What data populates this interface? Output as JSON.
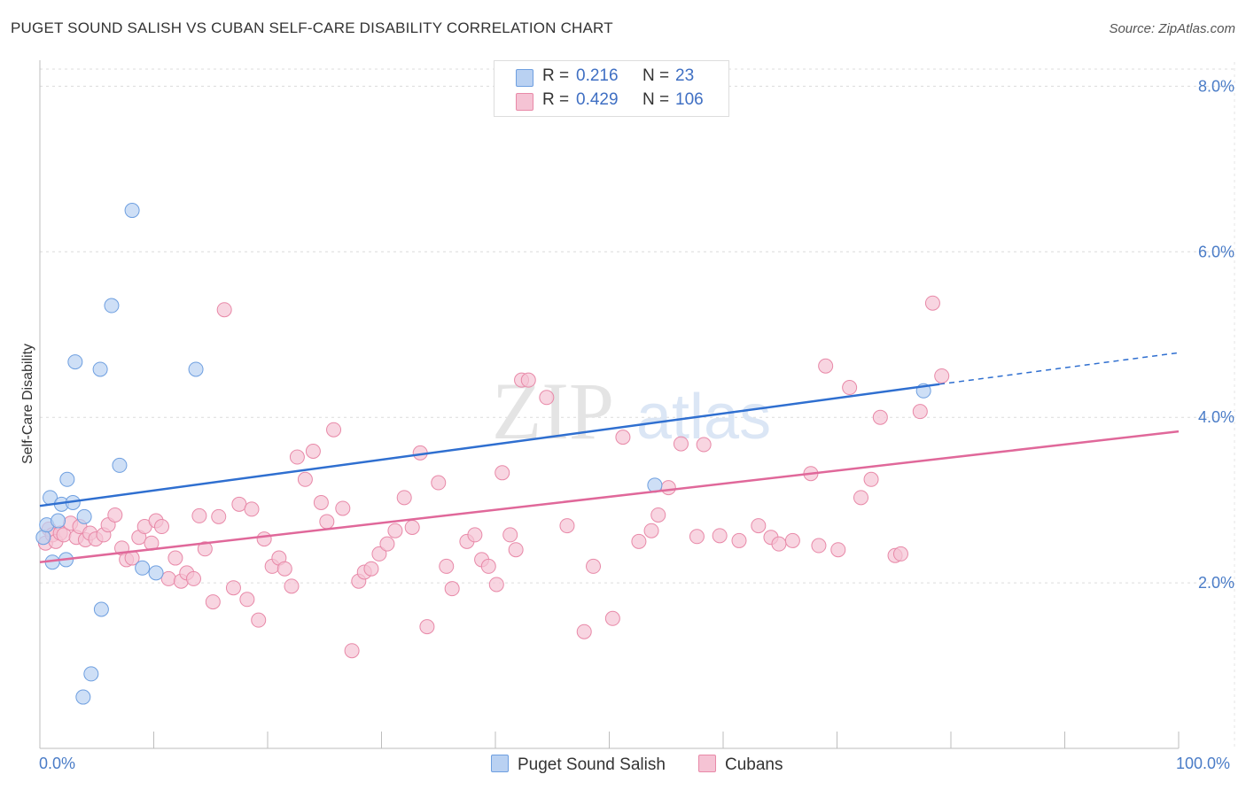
{
  "title": "PUGET SOUND SALISH VS CUBAN SELF-CARE DISABILITY CORRELATION CHART",
  "source": "Source: ZipAtlas.com",
  "watermark": "ZIPatlas",
  "legend": {
    "rows": [
      {
        "r_label": "R =",
        "r_value": "0.216",
        "n_label": "N =",
        "n_value": "23"
      },
      {
        "r_label": "R =",
        "r_value": "0.429",
        "n_label": "N =",
        "n_value": "106"
      }
    ]
  },
  "bottom_legend": [
    "Puget Sound Salish",
    "Cubans"
  ],
  "chart_data": {
    "type": "scatter",
    "title": "PUGET SOUND SALISH VS CUBAN SELF-CARE DISABILITY CORRELATION CHART",
    "xlabel": "",
    "ylabel": "Self-Care Disability",
    "xlim": [
      0,
      100
    ],
    "ylim": [
      0,
      8.4
    ],
    "x_tick_labels": [
      "0.0%",
      "100.0%"
    ],
    "y_ticks": [
      2.0,
      4.0,
      6.0,
      8.0
    ],
    "y_tick_labels": [
      "2.0%",
      "4.0%",
      "6.0%",
      "8.0%"
    ],
    "grid": true,
    "series": [
      {
        "name": "Puget Sound Salish",
        "color": "#6e9fe0",
        "fill": "#b9d1f2",
        "line_color": "#2f6fd0",
        "trend": {
          "x_start": 0,
          "y_start": 2.93,
          "x_solid_end": 79,
          "y_solid_end": 4.4,
          "x_dash_end": 100,
          "y_dash_end": 4.78
        },
        "points": [
          [
            0.3,
            2.55
          ],
          [
            0.6,
            2.7
          ],
          [
            0.9,
            3.03
          ],
          [
            1.1,
            2.25
          ],
          [
            1.6,
            2.75
          ],
          [
            1.9,
            2.95
          ],
          [
            2.3,
            2.28
          ],
          [
            2.4,
            3.25
          ],
          [
            2.9,
            2.97
          ],
          [
            3.1,
            4.67
          ],
          [
            3.9,
            2.8
          ],
          [
            5.3,
            4.58
          ],
          [
            5.4,
            1.68
          ],
          [
            6.3,
            5.35
          ],
          [
            7.0,
            3.42
          ],
          [
            8.1,
            6.5
          ],
          [
            9.0,
            2.18
          ],
          [
            10.2,
            2.12
          ],
          [
            13.7,
            4.58
          ],
          [
            3.8,
            0.62
          ],
          [
            4.5,
            0.9
          ],
          [
            54.0,
            3.18
          ],
          [
            77.6,
            4.32
          ]
        ]
      },
      {
        "name": "Cubans",
        "color": "#e889a8",
        "fill": "#f5c3d4",
        "line_color": "#e0689a",
        "trend": {
          "x_start": 0,
          "y_start": 2.25,
          "x_end": 100,
          "y_end": 3.83
        },
        "points": [
          [
            0.5,
            2.48
          ],
          [
            0.8,
            2.65
          ],
          [
            1.1,
            2.58
          ],
          [
            1.4,
            2.5
          ],
          [
            1.8,
            2.6
          ],
          [
            2.1,
            2.58
          ],
          [
            2.7,
            2.72
          ],
          [
            3.2,
            2.55
          ],
          [
            3.5,
            2.68
          ],
          [
            4.0,
            2.52
          ],
          [
            4.4,
            2.6
          ],
          [
            4.9,
            2.53
          ],
          [
            5.6,
            2.58
          ],
          [
            6.0,
            2.7
          ],
          [
            6.6,
            2.82
          ],
          [
            7.2,
            2.42
          ],
          [
            7.6,
            2.28
          ],
          [
            8.1,
            2.3
          ],
          [
            8.7,
            2.55
          ],
          [
            9.2,
            2.68
          ],
          [
            9.8,
            2.48
          ],
          [
            10.2,
            2.75
          ],
          [
            10.7,
            2.68
          ],
          [
            11.3,
            2.05
          ],
          [
            11.9,
            2.3
          ],
          [
            12.4,
            2.02
          ],
          [
            12.9,
            2.12
          ],
          [
            13.5,
            2.05
          ],
          [
            14.0,
            2.81
          ],
          [
            14.5,
            2.41
          ],
          [
            15.2,
            1.77
          ],
          [
            15.7,
            2.8
          ],
          [
            16.2,
            5.3
          ],
          [
            17.0,
            1.94
          ],
          [
            17.5,
            2.95
          ],
          [
            18.2,
            1.8
          ],
          [
            18.6,
            2.89
          ],
          [
            19.2,
            1.55
          ],
          [
            19.7,
            2.53
          ],
          [
            20.4,
            2.2
          ],
          [
            21.0,
            2.3
          ],
          [
            21.5,
            2.17
          ],
          [
            22.1,
            1.96
          ],
          [
            22.6,
            3.52
          ],
          [
            23.3,
            3.25
          ],
          [
            24.0,
            3.59
          ],
          [
            24.7,
            2.97
          ],
          [
            25.2,
            2.74
          ],
          [
            25.8,
            3.85
          ],
          [
            26.6,
            2.9
          ],
          [
            27.4,
            1.18
          ],
          [
            28.0,
            2.02
          ],
          [
            28.5,
            2.13
          ],
          [
            29.1,
            2.17
          ],
          [
            29.8,
            2.35
          ],
          [
            30.5,
            2.47
          ],
          [
            31.2,
            2.63
          ],
          [
            32.0,
            3.03
          ],
          [
            32.7,
            2.67
          ],
          [
            33.4,
            3.57
          ],
          [
            34.0,
            1.47
          ],
          [
            35.0,
            3.21
          ],
          [
            35.7,
            2.2
          ],
          [
            36.2,
            1.93
          ],
          [
            37.5,
            2.5
          ],
          [
            38.2,
            2.58
          ],
          [
            38.8,
            2.28
          ],
          [
            39.4,
            2.2
          ],
          [
            40.1,
            1.98
          ],
          [
            40.6,
            3.33
          ],
          [
            41.3,
            2.58
          ],
          [
            41.8,
            2.4
          ],
          [
            42.3,
            4.45
          ],
          [
            42.9,
            4.45
          ],
          [
            44.5,
            4.24
          ],
          [
            46.3,
            2.69
          ],
          [
            47.8,
            1.41
          ],
          [
            48.6,
            2.2
          ],
          [
            50.3,
            1.57
          ],
          [
            51.2,
            3.76
          ],
          [
            52.6,
            2.5
          ],
          [
            53.7,
            2.63
          ],
          [
            54.3,
            2.82
          ],
          [
            55.2,
            3.15
          ],
          [
            56.3,
            3.68
          ],
          [
            57.7,
            2.56
          ],
          [
            58.3,
            3.67
          ],
          [
            59.7,
            2.57
          ],
          [
            61.4,
            2.51
          ],
          [
            63.1,
            2.69
          ],
          [
            64.2,
            2.55
          ],
          [
            64.9,
            2.47
          ],
          [
            66.1,
            2.51
          ],
          [
            67.7,
            3.32
          ],
          [
            68.4,
            2.45
          ],
          [
            69.0,
            4.62
          ],
          [
            70.1,
            2.4
          ],
          [
            71.1,
            4.36
          ],
          [
            72.1,
            3.03
          ],
          [
            73.0,
            3.25
          ],
          [
            73.8,
            4.0
          ],
          [
            75.1,
            2.33
          ],
          [
            75.6,
            2.35
          ],
          [
            77.3,
            4.07
          ],
          [
            78.4,
            5.38
          ],
          [
            79.2,
            4.5
          ]
        ]
      }
    ]
  }
}
